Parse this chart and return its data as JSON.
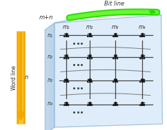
{
  "bit_line_label": "Bit line",
  "word_line_label": "Word line",
  "mn_label": "m+n",
  "row_labels": [
    "n₁",
    "n₂",
    "n₃",
    "n₄"
  ],
  "col_labels": [
    "m₁",
    "m₂",
    "m₃",
    "m₄"
  ],
  "n_label": "n",
  "panel_color": "#d4e8f8",
  "panel_edge_color": "#90b8d8",
  "panel_side_color": "#b8d0e8",
  "bit_arrow_color": "#22dd00",
  "bit_arrow_light": "#88ff44",
  "word_arrow_color": "#f0a800",
  "word_arrow_light": "#ffd040",
  "transistor_color": "#222222",
  "line_color": "#333333",
  "dot_color": "#111111",
  "background_color": "#ffffff",
  "grid_rows": 4,
  "grid_cols": 4
}
